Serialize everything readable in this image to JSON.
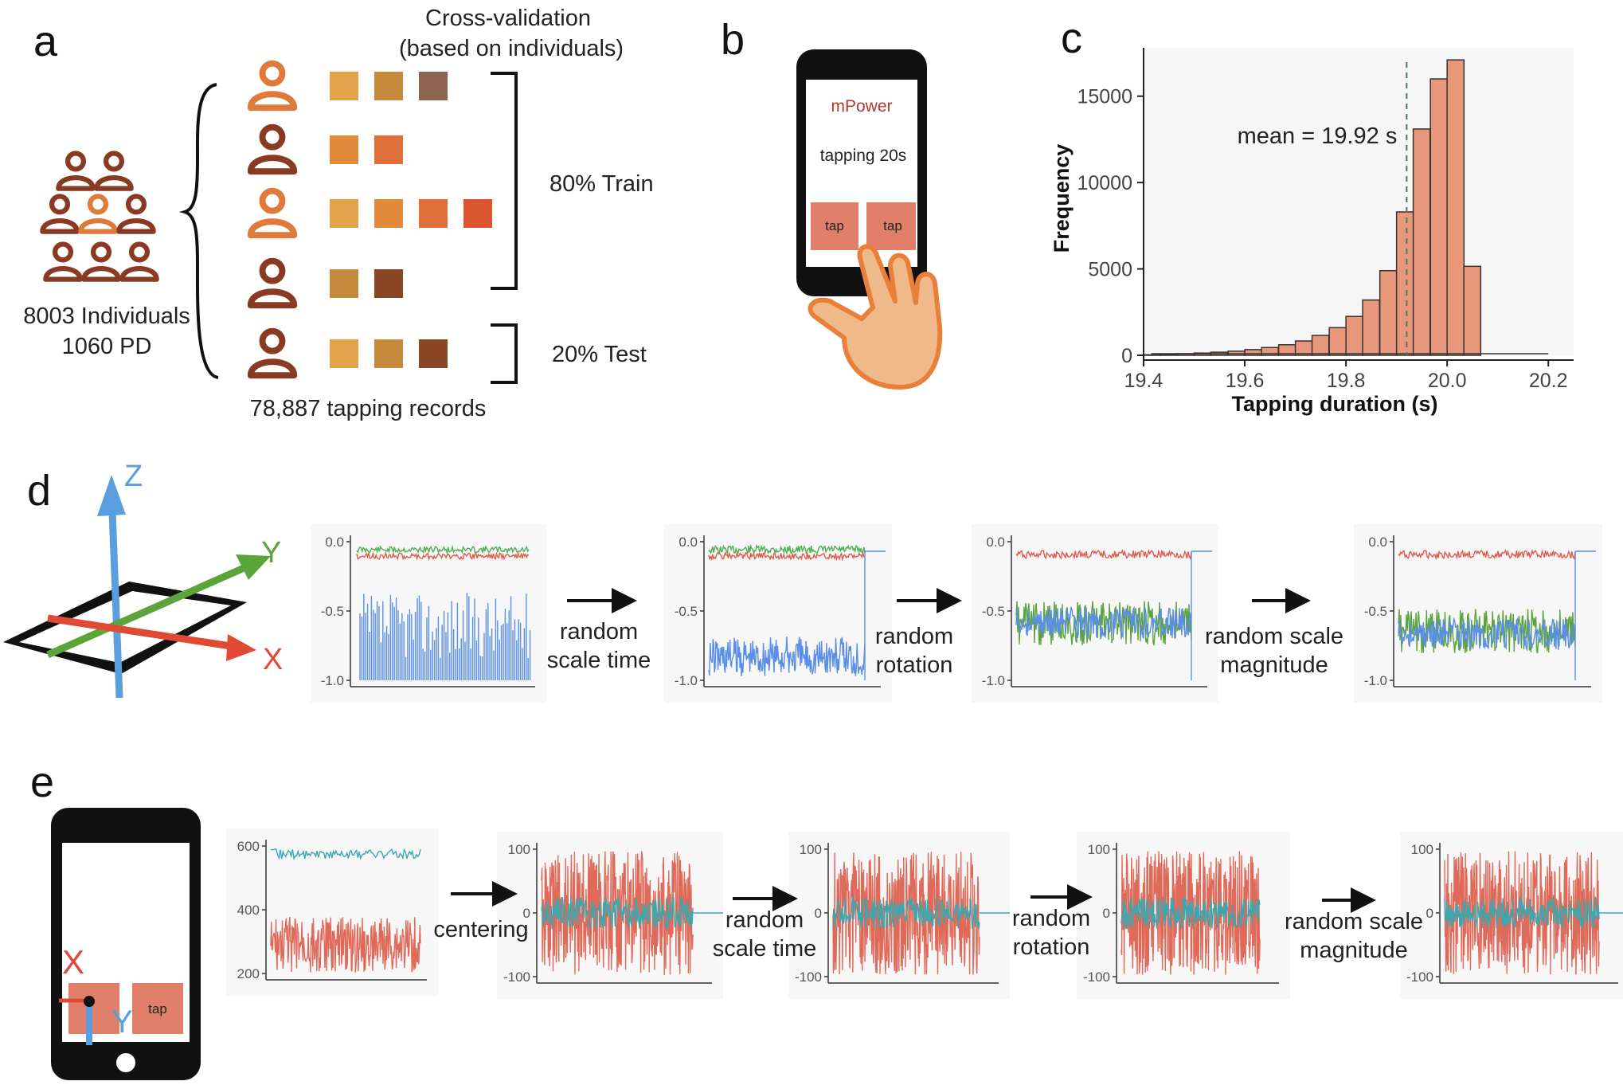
{
  "panel_labels": {
    "a": "a",
    "b": "b",
    "c": "c",
    "d": "d",
    "e": "e"
  },
  "panel_a": {
    "title_line1": "Cross-validation",
    "title_line2": "(based on individuals)",
    "individuals_line1": "8003 Individuals",
    "individuals_line2": "1060 PD",
    "train_label": "80% Train",
    "test_label": "20% Test",
    "records_label": "78,887 tapping records",
    "rows": [
      {
        "person_color": "#e07a3a",
        "squares": [
          "#e2a24a",
          "#c58a3e",
          "#8c6450"
        ]
      },
      {
        "person_color": "#8a3a22",
        "squares": [
          "#e08a3a",
          "#e0703a"
        ]
      },
      {
        "person_color": "#e07a3a",
        "squares": [
          "#e2a24a",
          "#e08a3a",
          "#e0703a",
          "#db5530"
        ]
      },
      {
        "person_color": "#8a3a22",
        "squares": [
          "#c58a3e",
          "#8a4524"
        ]
      },
      {
        "person_color": "#8a3a22",
        "squares": [
          "#e2a24a",
          "#c58a3e",
          "#8a4524"
        ]
      }
    ]
  },
  "panel_b": {
    "app_name": "mPower",
    "instruction": "tapping 20s",
    "button_left": "tap",
    "button_right": "tap"
  },
  "panel_c": {
    "ylabel": "Frequency",
    "xlabel": "Tapping duration (s)",
    "annotation": "mean = 19.92 s",
    "mean_value": 19.92,
    "bar_color": "#e8977a",
    "chart_data": {
      "type": "bar",
      "xlabel": "Tapping duration (s)",
      "ylabel": "Frequency",
      "xlim": [
        19.4,
        20.25
      ],
      "ylim": [
        0,
        17800
      ],
      "x_ticks": [
        "19.4",
        "19.6",
        "19.8",
        "20.0",
        "20.2"
      ],
      "y_ticks": [
        "0",
        "5000",
        "10000",
        "15000"
      ],
      "bin_width": 0.03333,
      "bin_starts": [
        19.4,
        19.433,
        19.467,
        19.5,
        19.533,
        19.567,
        19.6,
        19.633,
        19.667,
        19.7,
        19.733,
        19.767,
        19.8,
        19.833,
        19.867,
        19.9,
        19.933,
        19.967,
        20.0,
        20.033,
        20.067,
        20.1,
        20.133,
        20.167,
        20.2
      ],
      "values": [
        30,
        60,
        90,
        130,
        180,
        240,
        330,
        450,
        610,
        830,
        1150,
        1600,
        2250,
        3200,
        4900,
        8300,
        13100,
        16000,
        17100,
        5150,
        0,
        0,
        0,
        0,
        0
      ]
    }
  },
  "panel_d": {
    "axis_labels": {
      "z": "Z",
      "y": "Y",
      "x": "X"
    },
    "axis_colors": {
      "z": "#5a9ee0",
      "y": "#5aa43a",
      "x": "#e04a35"
    },
    "steps": [
      {
        "line1": "random",
        "line2": "scale time"
      },
      {
        "line1": "random",
        "line2": "rotation"
      },
      {
        "line1": "random scale",
        "line2": "magnitude"
      }
    ],
    "plot_ticks": [
      "0.0",
      "-0.5",
      "-1.0"
    ]
  },
  "panel_e": {
    "labels": {
      "x": "X",
      "y": "Y"
    },
    "button": "tap",
    "steps": [
      {
        "line1": "centering",
        "line2": ""
      },
      {
        "line1": "random",
        "line2": "scale time"
      },
      {
        "line1": "random",
        "line2": "rotation"
      },
      {
        "line1": "random scale",
        "line2": "magnitude"
      }
    ],
    "first_plot_ticks": [
      "600",
      "400",
      "200"
    ],
    "plot_ticks": [
      "100",
      "0",
      "-100"
    ]
  }
}
